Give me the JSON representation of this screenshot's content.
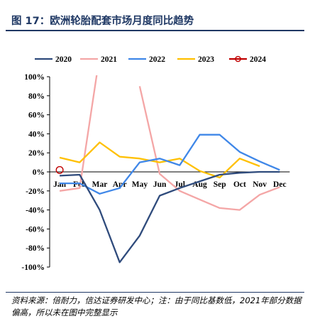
{
  "figure": {
    "title": "图 17：欧洲轮胎配套市场月度同比趋势",
    "source": "资料来源：倍耐力，信达证券研发中心；注：由于同比基数低，2021年部分数据偏高，所以未在图中完整显示"
  },
  "colors": {
    "title": "#1f3864",
    "2020": "#2f4b7c",
    "2021": "#f4a6a6",
    "2022": "#3f87e8",
    "2023": "#ffc000",
    "2024": "#c00000"
  },
  "chart_data": {
    "type": "line",
    "categories": [
      "Jan",
      "Feb",
      "Mar",
      "Apr",
      "May",
      "Jun",
      "Jul",
      "Aug",
      "Sep",
      "Oct",
      "Nov",
      "Dec"
    ],
    "ylim": [
      -100,
      100
    ],
    "yticks": [
      "100%",
      "80%",
      "60%",
      "40%",
      "20%",
      "0%",
      "-20%",
      "-40%",
      "-60%",
      "-80%",
      "-100%"
    ],
    "ytick_values": [
      100,
      80,
      60,
      40,
      20,
      0,
      -20,
      -40,
      -60,
      -80,
      -100
    ],
    "grid": false,
    "legend_position": "top",
    "series": [
      {
        "name": "2020",
        "values": [
          -4,
          -3,
          -40,
          -95,
          -67,
          -25,
          -17,
          -10,
          -3,
          -1,
          0,
          0
        ]
      },
      {
        "name": "2021",
        "values": [
          -20,
          -17,
          100,
          null,
          90,
          -2,
          -20,
          -29,
          -38,
          -40,
          -24,
          -16
        ]
      },
      {
        "name": "2022",
        "values": [
          -12,
          -12,
          -23,
          -17,
          10,
          14,
          7,
          39,
          39,
          21,
          11,
          2
        ]
      },
      {
        "name": "2023",
        "values": [
          15,
          10,
          31,
          16,
          14,
          10,
          14,
          1,
          -6,
          14,
          6,
          null
        ]
      },
      {
        "name": "2024",
        "values": [
          2,
          null,
          null,
          null,
          null,
          null,
          null,
          null,
          null,
          null,
          null,
          null
        ]
      }
    ]
  }
}
